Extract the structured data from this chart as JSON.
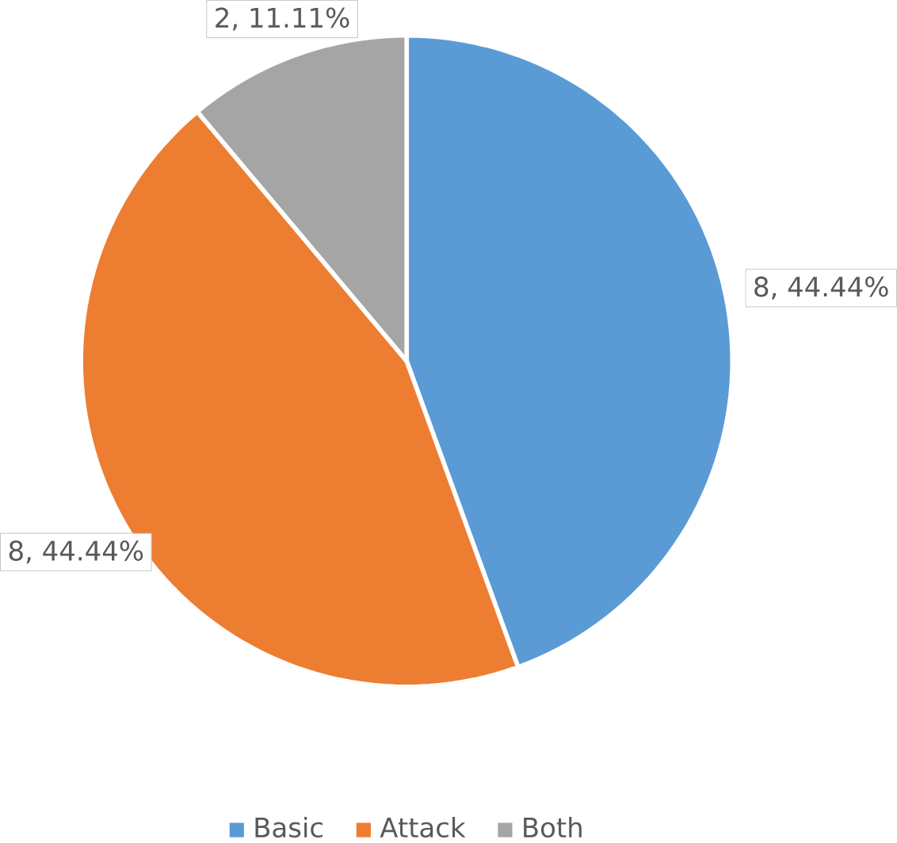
{
  "chart_data": {
    "type": "pie",
    "categories": [
      "Basic",
      "Attack",
      "Both"
    ],
    "values": [
      8,
      8,
      2
    ],
    "colors": [
      "#5b9bd5",
      "#ed7d31",
      "#a5a5a5"
    ],
    "value_labels": [
      "8, 44.44%",
      "8, 44.44%",
      "2, 11.11%"
    ],
    "legend": "bottom"
  }
}
